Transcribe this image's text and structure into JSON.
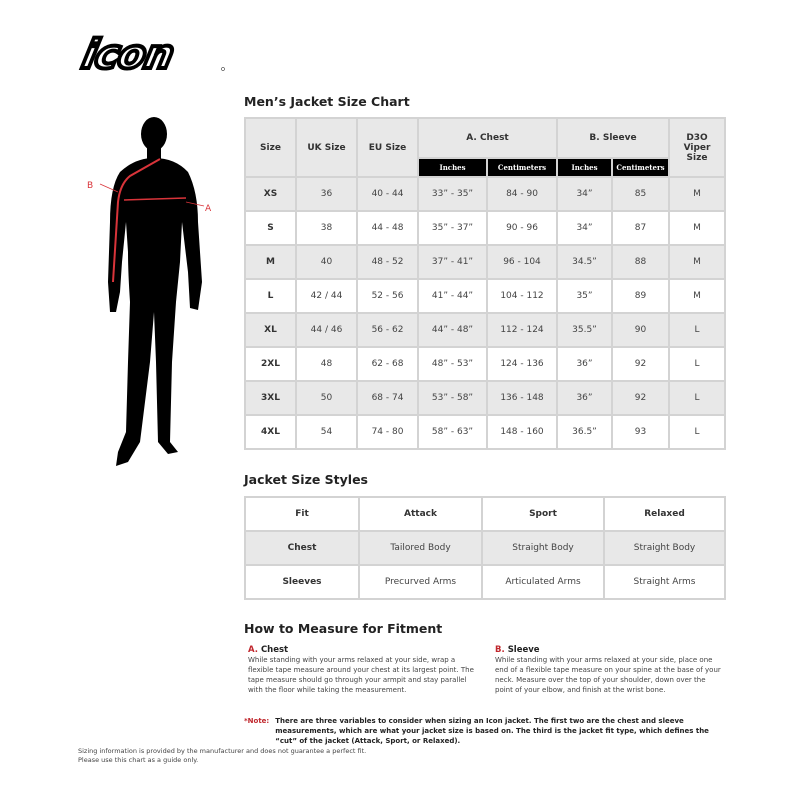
{
  "brand": {
    "logo_text": "ICON"
  },
  "figure": {
    "label_a": "A",
    "label_b": "B",
    "accent": "#d9343a"
  },
  "size_chart": {
    "title": "Men’s Jacket Size Chart",
    "headers": {
      "size": "Size",
      "uk": "UK Size",
      "eu": "EU Size",
      "chest": "A. Chest",
      "sleeve": "B. Sleeve",
      "d3o": "D3O Viper Size"
    },
    "subheaders": [
      "Inches",
      "Centimeters",
      "Inches",
      "Centimeters"
    ],
    "rows": [
      [
        "XS",
        "36",
        "40 - 44",
        "33” - 35”",
        "84 - 90",
        "34”",
        "85",
        "M"
      ],
      [
        "S",
        "38",
        "44 - 48",
        "35” - 37”",
        "90 - 96",
        "34”",
        "87",
        "M"
      ],
      [
        "M",
        "40",
        "48 - 52",
        "37” - 41”",
        "96 - 104",
        "34.5”",
        "88",
        "M"
      ],
      [
        "L",
        "42 / 44",
        "52 - 56",
        "41” - 44”",
        "104 - 112",
        "35”",
        "89",
        "M"
      ],
      [
        "XL",
        "44 / 46",
        "56 - 62",
        "44” - 48”",
        "112 - 124",
        "35.5”",
        "90",
        "L"
      ],
      [
        "2XL",
        "48",
        "62 - 68",
        "48” - 53”",
        "124 - 136",
        "36”",
        "92",
        "L"
      ],
      [
        "3XL",
        "50",
        "68 - 74",
        "53” - 58”",
        "136 - 148",
        "36”",
        "92",
        "L"
      ],
      [
        "4XL",
        "54",
        "74 - 80",
        "58” - 63”",
        "148 - 160",
        "36.5”",
        "93",
        "L"
      ]
    ]
  },
  "styles": {
    "title": "Jacket Size Styles",
    "rows": [
      [
        "Fit",
        "Attack",
        "Sport",
        "Relaxed"
      ],
      [
        "Chest",
        "Tailored Body",
        "Straight Body",
        "Straight Body"
      ],
      [
        "Sleeves",
        "Precurved Arms",
        "Articulated Arms",
        "Straight Arms"
      ]
    ]
  },
  "measure": {
    "title": "How to Measure for Fitment",
    "chest": {
      "letter": "A.",
      "label": "Chest",
      "text": "While standing with your arms relaxed at your side, wrap a flexible tape measure around your chest at its largest point. The tape measure should go through your armpit and stay parallel with the floor while taking the measurement."
    },
    "sleeve": {
      "letter": "B.",
      "label": "Sleeve",
      "text": "While standing with your arms relaxed at your side, place one end of a flexible tape measure on your spine at the base of your neck. Measure over the top of your shoulder, down over the point of your elbow, and finish at the wrist bone."
    },
    "note_label": "*Note:",
    "note_text": "There are three variables to consider when sizing an Icon jacket. The first two are the chest and sleeve measurements, which are what your jacket size is based on. The third is the jacket fit type, which defines the “cut” of the jacket (Attack, Sport, or Relaxed)."
  },
  "footer": {
    "line1": "Sizing information is provided by the manufacturer and does not guarantee a perfect fit.",
    "line2": "Please use this chart as a guide only."
  }
}
